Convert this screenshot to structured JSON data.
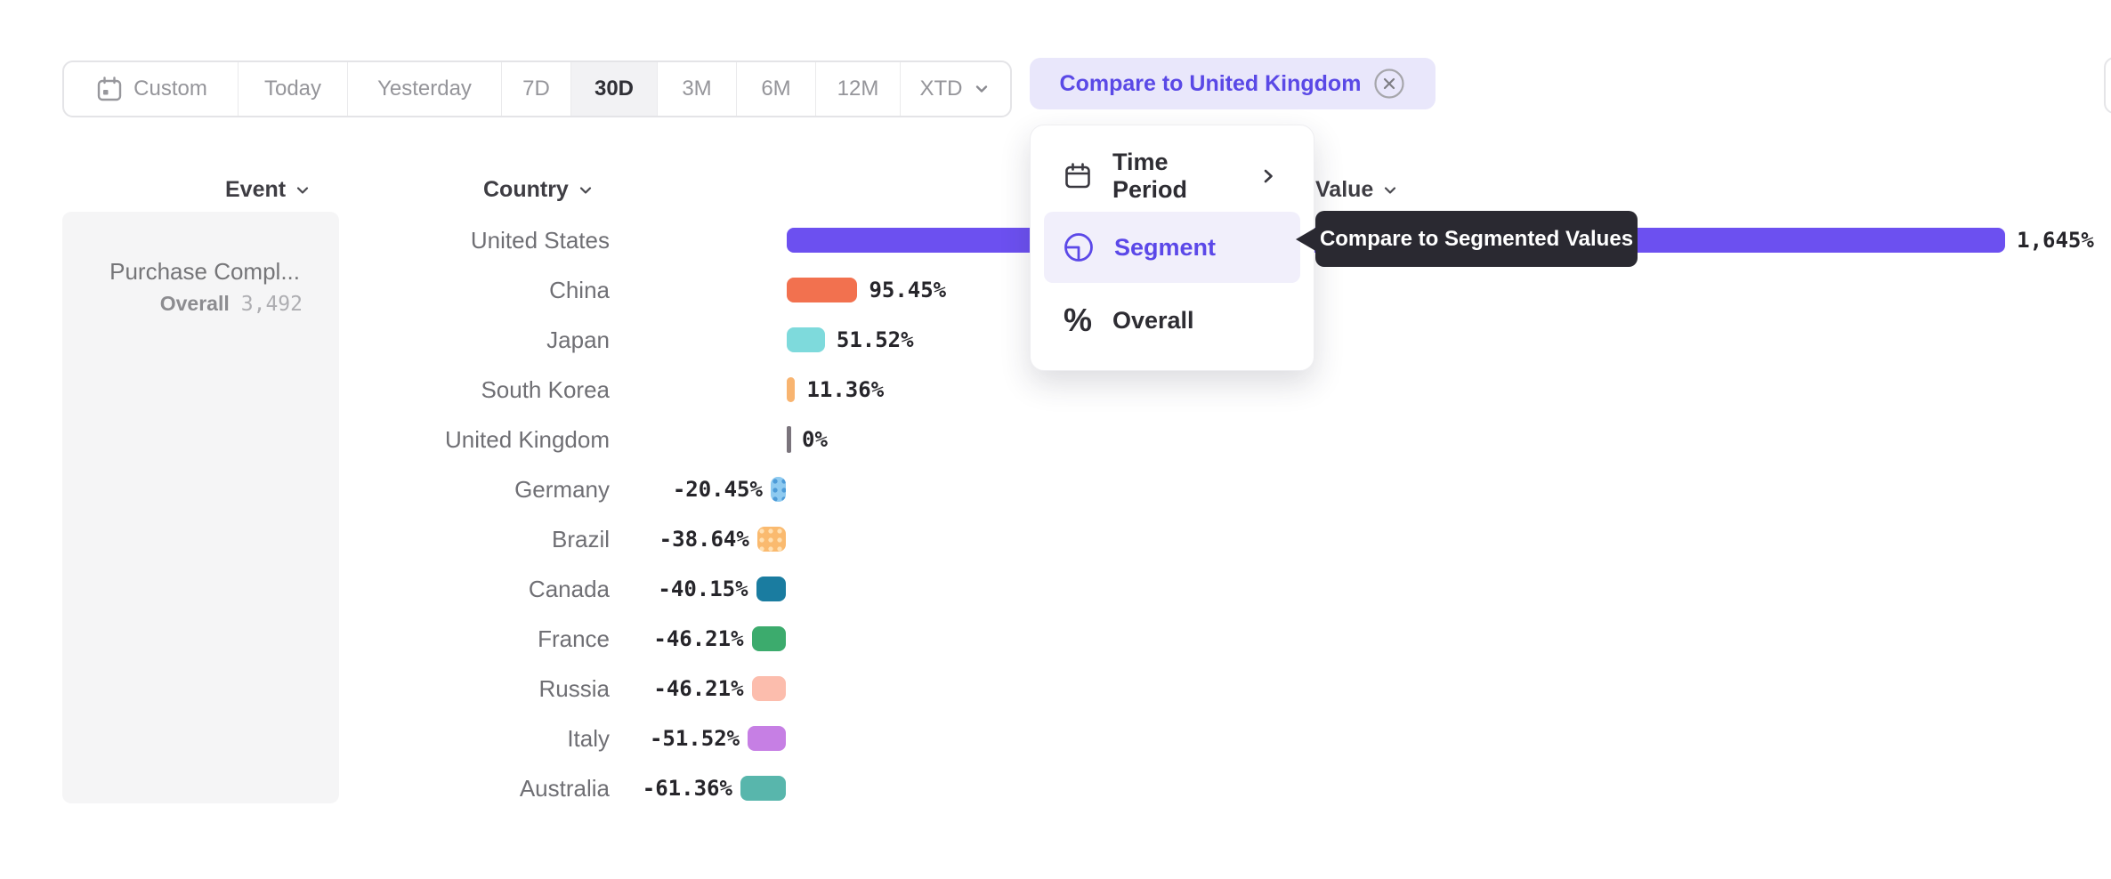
{
  "toolbar": {
    "items": [
      {
        "label": "Custom",
        "icon": "calendar",
        "selected": false
      },
      {
        "label": "Today",
        "selected": false
      },
      {
        "label": "Yesterday",
        "selected": false
      },
      {
        "label": "7D",
        "selected": false
      },
      {
        "label": "30D",
        "selected": true
      },
      {
        "label": "3M",
        "selected": false
      },
      {
        "label": "6M",
        "selected": false
      },
      {
        "label": "12M",
        "selected": false
      },
      {
        "label": "XTD",
        "has_chevron": true,
        "selected": false
      }
    ]
  },
  "compare_chip": {
    "label": "Compare to United Kingdom",
    "bg": "#E9E7FB",
    "text_color": "#5A49E6"
  },
  "columns": {
    "event": "Event",
    "country": "Country",
    "value": "Value"
  },
  "event_panel": {
    "title": "Purchase Compl...",
    "overall_label": "Overall",
    "overall_value": "3,492"
  },
  "menu": {
    "items": [
      {
        "label": "Time Period",
        "icon": "calendar-icon",
        "has_submenu": true,
        "selected": false
      },
      {
        "label": "Segment",
        "icon": "segment-icon",
        "has_submenu": false,
        "selected": true
      },
      {
        "label": "Overall",
        "icon": "percent-icon",
        "has_submenu": false,
        "selected": false
      }
    ],
    "highlight_bg": "#F1EFFB",
    "selected_text_color": "#5B48E8"
  },
  "tooltip": {
    "text": "Compare to Segmented Values",
    "bg": "#2A2931"
  },
  "chart_data": {
    "type": "bar",
    "orientation": "horizontal",
    "title": "",
    "xlabel": "",
    "ylabel": "",
    "categories": [
      "United States",
      "China",
      "Japan",
      "South Korea",
      "United Kingdom",
      "Germany",
      "Brazil",
      "Canada",
      "France",
      "Russia",
      "Italy",
      "Australia"
    ],
    "values": [
      1645,
      95.45,
      51.52,
      11.36,
      0,
      -20.45,
      -38.64,
      -40.15,
      -46.21,
      -46.21,
      -51.52,
      -61.36
    ],
    "value_labels": [
      "1,645%",
      "95.45%",
      "51.52%",
      "11.36%",
      "0%",
      "-20.45%",
      "-38.64%",
      "-40.15%",
      "-46.21%",
      "-46.21%",
      "-51.52%",
      "-61.36%"
    ],
    "colors": [
      "#6C50F0",
      "#F2714F",
      "#7EDADC",
      "#F8B470",
      "#7A747C",
      "#8ECAF0",
      "#FABA6F",
      "#1A7CA0",
      "#3CAB6D",
      "#FCBDAD",
      "#C67FE4",
      "#58B6AC"
    ],
    "dot_pattern_colors": [
      null,
      null,
      null,
      null,
      null,
      "#4C9BD8",
      "#FFE0B3",
      null,
      null,
      null,
      null,
      null
    ],
    "baseline_label": "United Kingdom",
    "grid": false,
    "legend": false
  }
}
